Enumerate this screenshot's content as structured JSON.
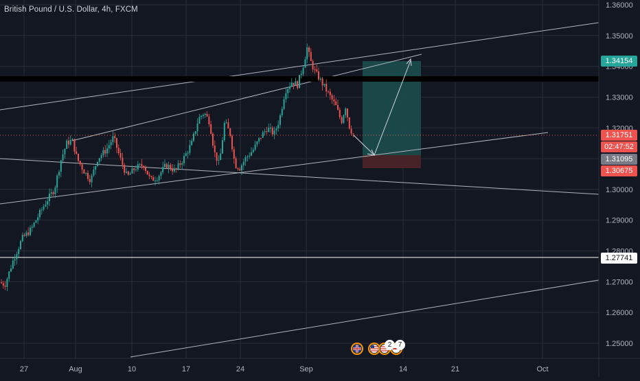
{
  "title": "British Pound / U.S. Dollar, 4h, FXCM",
  "colors": {
    "background": "#131722",
    "grid": "#2a2e39",
    "bull": "#26a69a",
    "bear": "#ef5350",
    "line": "#b2b5be",
    "target_zone": "#1f4f4f",
    "stop_zone": "#4d2327",
    "resistance": "#000000"
  },
  "price_labels": {
    "target": {
      "value": "1.34154",
      "bg": "#26a69a",
      "fg": "#ffffff"
    },
    "current": {
      "value": "1.31751",
      "bg": "#ef5350",
      "fg": "#ffffff"
    },
    "countdown": {
      "value": "02:47:52",
      "bg": "#ef5350",
      "fg": "#ffffff"
    },
    "entry": {
      "value": "1.31095",
      "bg": "#787b86",
      "fg": "#ffffff"
    },
    "stop": {
      "value": "1.30675",
      "bg": "#ef5350",
      "fg": "#ffffff"
    },
    "support": {
      "value": "1.27741",
      "bg": "#ffffff",
      "fg": "#131722"
    }
  },
  "event_badges": [
    "2",
    "7"
  ],
  "chart_data": {
    "type": "candlestick",
    "symbol": "British Pound / U.S. Dollar",
    "interval": "4h",
    "source": "FXCM",
    "y_ticks": [
      "1.36000",
      "1.35000",
      "1.34000",
      "1.33000",
      "1.32000",
      "1.31000",
      "1.30000",
      "1.29000",
      "1.28000",
      "1.27000",
      "1.26000",
      "1.25000"
    ],
    "ylim": [
      1.244,
      1.3605
    ],
    "x_ticks": [
      "27",
      "Aug",
      "10",
      "17",
      "24",
      "Sep",
      "14",
      "21",
      "Oct"
    ],
    "price_path": [
      [
        0,
        1.27
      ],
      [
        10,
        1.269
      ],
      [
        22,
        1.277
      ],
      [
        35,
        1.284
      ],
      [
        48,
        1.287
      ],
      [
        60,
        1.292
      ],
      [
        70,
        1.296
      ],
      [
        82,
        1.3
      ],
      [
        92,
        1.31
      ],
      [
        100,
        1.315
      ],
      [
        108,
        1.316
      ],
      [
        115,
        1.31
      ],
      [
        125,
        1.306
      ],
      [
        135,
        1.303
      ],
      [
        145,
        1.31
      ],
      [
        158,
        1.313
      ],
      [
        168,
        1.317
      ],
      [
        178,
        1.31
      ],
      [
        188,
        1.304
      ],
      [
        200,
        1.307
      ],
      [
        212,
        1.308
      ],
      [
        222,
        1.303
      ],
      [
        232,
        1.304
      ],
      [
        245,
        1.308
      ],
      [
        258,
        1.306
      ],
      [
        270,
        1.31
      ],
      [
        282,
        1.315
      ],
      [
        292,
        1.323
      ],
      [
        300,
        1.325
      ],
      [
        308,
        1.322
      ],
      [
        315,
        1.312
      ],
      [
        322,
        1.308
      ],
      [
        330,
        1.322
      ],
      [
        338,
        1.318
      ],
      [
        345,
        1.308
      ],
      [
        352,
        1.307
      ],
      [
        360,
        1.31
      ],
      [
        372,
        1.313
      ],
      [
        382,
        1.317
      ],
      [
        392,
        1.32
      ],
      [
        402,
        1.318
      ],
      [
        410,
        1.323
      ],
      [
        418,
        1.332
      ],
      [
        428,
        1.335
      ],
      [
        436,
        1.334
      ],
      [
        444,
        1.34
      ],
      [
        450,
        1.346
      ],
      [
        456,
        1.341
      ],
      [
        462,
        1.338
      ],
      [
        468,
        1.336
      ],
      [
        476,
        1.333
      ],
      [
        484,
        1.33
      ],
      [
        492,
        1.327
      ],
      [
        500,
        1.322
      ],
      [
        506,
        1.327
      ],
      [
        512,
        1.32
      ],
      [
        517,
        1.318
      ]
    ],
    "current_price": 1.31751,
    "target_price": 1.34154,
    "entry_price": 1.31095,
    "stop_price": 1.30675,
    "horizontal_resistance": 1.3355,
    "horizontal_support": 1.27741
  }
}
